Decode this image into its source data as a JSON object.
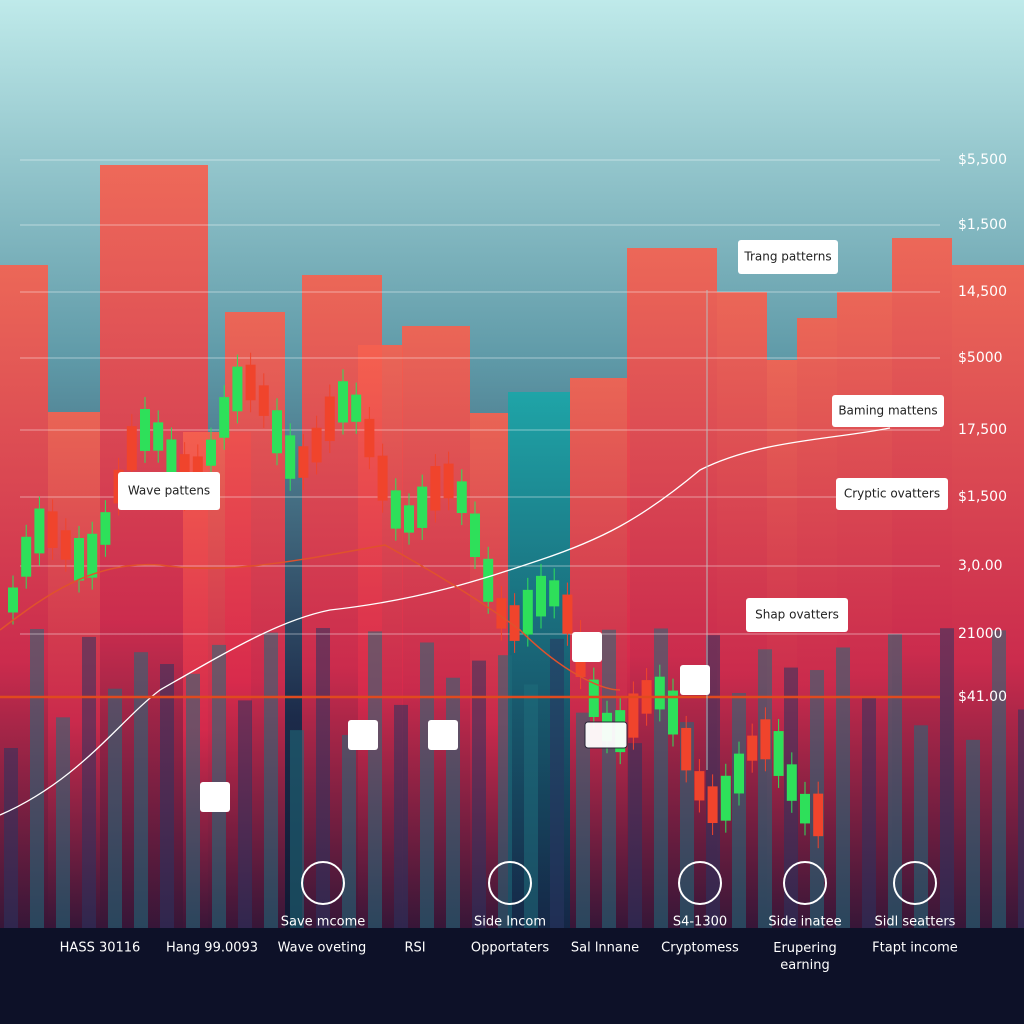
{
  "axis_labels": [
    "$5,500",
    "$1,500",
    "14,500",
    "$5000",
    "17,500",
    "$1,500",
    "3,0.00",
    "21000",
    "$41.00"
  ],
  "callouts": [
    "Trang patterns",
    "Baming mattens",
    "Cryptic ovatters",
    "Shap ovatters",
    "Wave pattens"
  ],
  "features": [
    "Save mcome",
    "Side Incom",
    "S4-1300",
    "Side inatee",
    "Sidl seatters"
  ],
  "footer": [
    "HASS 30116",
    "Hang 99.0093",
    "Wave oveting",
    "RSI",
    "Opportaters",
    "Sal lnnane",
    "Cryptomess",
    "Erupering earning",
    "Ftapt income"
  ]
}
